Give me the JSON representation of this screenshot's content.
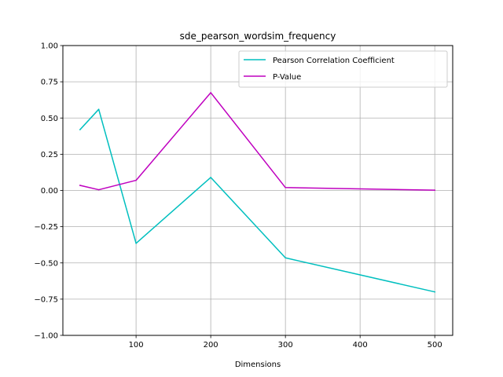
{
  "chart_data": {
    "type": "line",
    "title": "sde_pearson_wordsim_frequency",
    "xlabel": "Dimensions",
    "ylabel": "",
    "x": [
      25,
      50,
      100,
      200,
      300,
      500
    ],
    "xlim": [
      2,
      524
    ],
    "ylim": [
      -1.0,
      1.0
    ],
    "xticks": [
      100,
      200,
      300,
      400,
      500
    ],
    "xtick_labels": [
      "100",
      "200",
      "300",
      "400",
      "500"
    ],
    "yticks": [
      -1.0,
      -0.75,
      -0.5,
      -0.25,
      0.0,
      0.25,
      0.5,
      0.75,
      1.0
    ],
    "ytick_labels": [
      "−1.00",
      "−0.75",
      "−0.50",
      "−0.25",
      "0.00",
      "0.25",
      "0.50",
      "0.75",
      "1.00"
    ],
    "grid": true,
    "legend_position": "top-right",
    "series": [
      {
        "name": "Pearson Correlation Coefficient",
        "color": "#00bfbf",
        "values": [
          0.42,
          0.56,
          -0.365,
          0.09,
          -0.465,
          -0.7
        ]
      },
      {
        "name": "P-Value",
        "color": "#bf00bf",
        "values": [
          0.035,
          0.005,
          0.07,
          0.675,
          0.02,
          0.002
        ]
      }
    ]
  }
}
